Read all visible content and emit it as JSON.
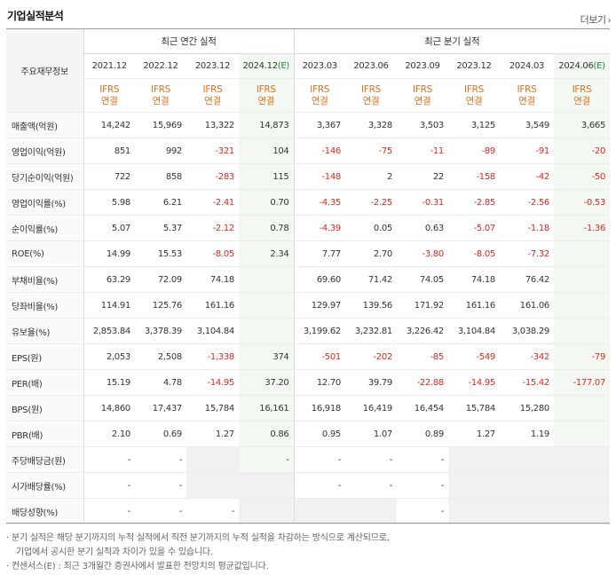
{
  "header": {
    "title": "기업실적분석",
    "more_label": "더보기",
    "more_chevron": "›"
  },
  "table": {
    "row_header_label": "주요재무정보",
    "groups": {
      "annual": "최근 연간 실적",
      "quarterly": "최근 분기 실적"
    },
    "periods": [
      {
        "label": "2021.12",
        "est": false
      },
      {
        "label": "2022.12",
        "est": false
      },
      {
        "label": "2023.12",
        "est": false
      },
      {
        "label": "2024.12",
        "est": true,
        "est_mark": "(E)"
      },
      {
        "label": "2023.03",
        "est": false
      },
      {
        "label": "2023.06",
        "est": false
      },
      {
        "label": "2023.09",
        "est": false
      },
      {
        "label": "2023.12",
        "est": false
      },
      {
        "label": "2024.03",
        "est": false
      },
      {
        "label": "2024.06",
        "est": true,
        "est_mark": "(E)"
      }
    ],
    "ifrs_top": "IFRS",
    "ifrs_bottom": "연결",
    "rows": [
      {
        "label": "매출액(억원)",
        "values": [
          "14,242",
          "15,969",
          "13,322",
          "14,873",
          "3,367",
          "3,328",
          "3,503",
          "3,125",
          "3,549",
          "3,665"
        ]
      },
      {
        "label": "영업이익(억원)",
        "values": [
          "851",
          "992",
          "-321",
          "104",
          "-146",
          "-75",
          "-11",
          "-89",
          "-91",
          "-20"
        ]
      },
      {
        "label": "당기순이익(억원)",
        "values": [
          "722",
          "858",
          "-283",
          "115",
          "-148",
          "2",
          "22",
          "-158",
          "-42",
          "-50"
        ]
      },
      {
        "label": "영업이익률(%)",
        "values": [
          "5.98",
          "6.21",
          "-2.41",
          "0.70",
          "-4.35",
          "-2.25",
          "-0.31",
          "-2.85",
          "-2.56",
          "-0.53"
        ]
      },
      {
        "label": "순이익률(%)",
        "values": [
          "5.07",
          "5.37",
          "-2.12",
          "0.78",
          "-4.39",
          "0.05",
          "0.63",
          "-5.07",
          "-1.18",
          "-1.36"
        ]
      },
      {
        "label": "ROE(%)",
        "values": [
          "14.99",
          "15.53",
          "-8.05",
          "2.34",
          "7.77",
          "2.70",
          "-3.80",
          "-8.05",
          "-7.32",
          ""
        ]
      },
      {
        "label": "부채비율(%)",
        "values": [
          "63.29",
          "72.09",
          "74.18",
          "",
          "69.60",
          "71.42",
          "74.05",
          "74.18",
          "76.42",
          ""
        ]
      },
      {
        "label": "당좌비율(%)",
        "values": [
          "114.91",
          "125.76",
          "161.16",
          "",
          "129.97",
          "139.56",
          "171.92",
          "161.16",
          "161.06",
          ""
        ]
      },
      {
        "label": "유보율(%)",
        "values": [
          "2,853.84",
          "3,378.39",
          "3,104.84",
          "",
          "3,199.62",
          "3,232.81",
          "3,226.42",
          "3,104.84",
          "3,038.29",
          ""
        ]
      },
      {
        "label": "EPS(원)",
        "values": [
          "2,053",
          "2,508",
          "-1,338",
          "374",
          "-501",
          "-202",
          "-85",
          "-549",
          "-342",
          "-79"
        ]
      },
      {
        "label": "PER(배)",
        "values": [
          "15.19",
          "4.78",
          "-14.95",
          "37.20",
          "12.70",
          "39.79",
          "-22.88",
          "-14.95",
          "-15.42",
          "-177.07"
        ]
      },
      {
        "label": "BPS(원)",
        "values": [
          "14,860",
          "17,437",
          "15,784",
          "16,161",
          "16,918",
          "16,419",
          "16,454",
          "15,784",
          "15,280",
          ""
        ]
      },
      {
        "label": "PBR(배)",
        "values": [
          "2.10",
          "0.69",
          "1.27",
          "0.86",
          "0.95",
          "1.07",
          "0.89",
          "1.27",
          "1.19",
          ""
        ]
      },
      {
        "label": "주당배당금(원)",
        "values": [
          "-",
          "-",
          "",
          "-",
          "-",
          "-",
          "-",
          "",
          "",
          ""
        ],
        "gray": [
          2,
          7,
          8,
          9
        ]
      },
      {
        "label": "시가배당률(%)",
        "values": [
          "-",
          "-",
          "",
          "",
          "-",
          "-",
          "-",
          "",
          "",
          ""
        ],
        "gray": [
          2,
          3,
          7,
          8,
          9
        ]
      },
      {
        "label": "배당성향(%)",
        "values": [
          "-",
          "-",
          "-",
          "",
          "",
          "",
          "-",
          "",
          "",
          ""
        ],
        "gray": [
          3,
          4,
          5,
          7,
          8,
          9
        ]
      }
    ]
  },
  "notes": [
    "· 분기 실적은 해당 분기까지의 누적 실적에서 직전 분기까지의 누적 실적을 차감하는 방식으로 계산되므로,",
    "기업에서 공시한 분기 실적과 차이가 있을 수 있습니다.",
    "· 컨센서스(E) : 최근 3개월간 증권사에서 발표한 전망치의 평균값입니다."
  ],
  "colors": {
    "negative": "#e0261e",
    "ifrs": "#e2701d",
    "estimate_bg": "#f3f9f2"
  }
}
